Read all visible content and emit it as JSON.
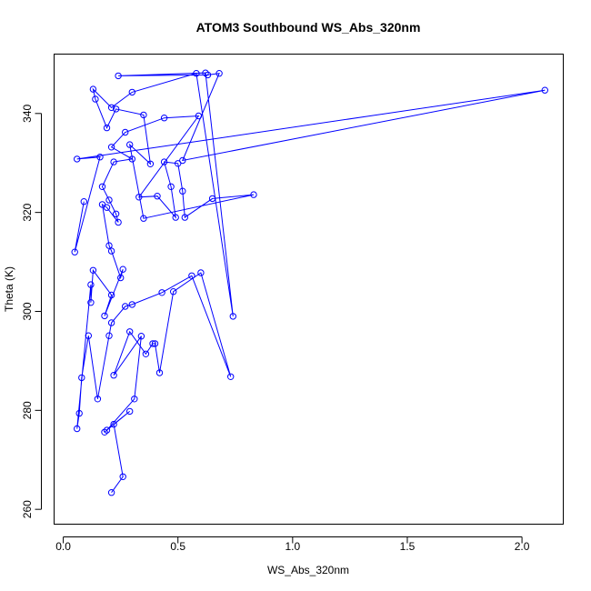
{
  "chart_data": {
    "type": "line",
    "title": "ATOM3 Southbound WS_Abs_320nm",
    "xlabel": "WS_Abs_320nm",
    "ylabel": "Theta (K)",
    "xlim": [
      -0.04,
      2.18
    ],
    "ylim": [
      257,
      352
    ],
    "xticks": [
      0.0,
      0.5,
      1.0,
      1.5,
      2.0
    ],
    "xtick_labels": [
      "0.0",
      "0.5",
      "1.0",
      "1.5",
      "2.0"
    ],
    "yticks": [
      260,
      280,
      300,
      320,
      340
    ],
    "ytick_labels": [
      "260",
      "280",
      "300",
      "320",
      "340"
    ],
    "grid": false,
    "legend": "none",
    "marker": "open-circle",
    "series": [
      {
        "color": "#0000ff",
        "points": [
          [
            0.21,
            263.4
          ],
          [
            0.26,
            266.6
          ],
          [
            0.22,
            277.2
          ],
          [
            0.29,
            279.8
          ],
          [
            0.18,
            275.6
          ],
          [
            0.19,
            276.0
          ],
          [
            0.31,
            282.3
          ],
          [
            0.34,
            295.0
          ],
          [
            0.22,
            287.1
          ],
          [
            0.29,
            295.9
          ],
          [
            0.36,
            291.4
          ],
          [
            0.39,
            293.5
          ],
          [
            0.4,
            293.5
          ],
          [
            0.42,
            287.6
          ],
          [
            0.48,
            304.0
          ],
          [
            0.6,
            307.8
          ],
          [
            0.73,
            286.8
          ],
          [
            0.56,
            307.2
          ],
          [
            0.43,
            303.8
          ],
          [
            0.3,
            301.4
          ],
          [
            0.27,
            301.0
          ],
          [
            0.21,
            297.7
          ],
          [
            0.2,
            295.1
          ],
          [
            0.15,
            282.3
          ],
          [
            0.11,
            295.1
          ],
          [
            0.08,
            286.6
          ],
          [
            0.07,
            279.4
          ],
          [
            0.06,
            276.3
          ],
          [
            0.12,
            305.4
          ],
          [
            0.12,
            301.8
          ],
          [
            0.13,
            308.3
          ],
          [
            0.21,
            303.3
          ],
          [
            0.18,
            299.1
          ],
          [
            0.26,
            308.5
          ],
          [
            0.25,
            306.8
          ],
          [
            0.21,
            312.2
          ],
          [
            0.2,
            313.3
          ],
          [
            0.17,
            321.6
          ],
          [
            0.19,
            321.0
          ],
          [
            0.24,
            318.0
          ],
          [
            0.23,
            319.7
          ],
          [
            0.2,
            322.5
          ],
          [
            0.17,
            325.2
          ],
          [
            0.22,
            330.2
          ],
          [
            0.3,
            330.8
          ],
          [
            0.21,
            333.2
          ],
          [
            0.27,
            336.2
          ],
          [
            0.44,
            339.1
          ],
          [
            0.59,
            339.5
          ],
          [
            0.33,
            323.1
          ],
          [
            0.41,
            323.3
          ],
          [
            0.49,
            319.0
          ],
          [
            0.47,
            325.2
          ],
          [
            0.44,
            330.2
          ],
          [
            0.5,
            329.9
          ],
          [
            0.52,
            324.3
          ],
          [
            0.53,
            319.0
          ],
          [
            0.65,
            322.8
          ],
          [
            0.83,
            323.6
          ],
          [
            0.35,
            318.8
          ],
          [
            0.29,
            333.7
          ],
          [
            0.38,
            329.8
          ],
          [
            0.35,
            339.7
          ],
          [
            0.23,
            340.9
          ],
          [
            0.19,
            337.1
          ],
          [
            0.14,
            342.9
          ],
          [
            0.13,
            344.9
          ],
          [
            0.21,
            341.2
          ],
          [
            0.3,
            344.3
          ],
          [
            0.58,
            348.1
          ],
          [
            0.74,
            299.0
          ],
          [
            0.62,
            348.2
          ],
          [
            0.24,
            347.6
          ],
          [
            0.63,
            347.8
          ],
          [
            0.68,
            348.1
          ],
          [
            0.52,
            330.5
          ],
          [
            2.1,
            344.7
          ],
          [
            0.06,
            330.8
          ],
          [
            0.16,
            331.2
          ],
          [
            0.05,
            312.0
          ],
          [
            0.09,
            322.2
          ]
        ]
      }
    ]
  }
}
